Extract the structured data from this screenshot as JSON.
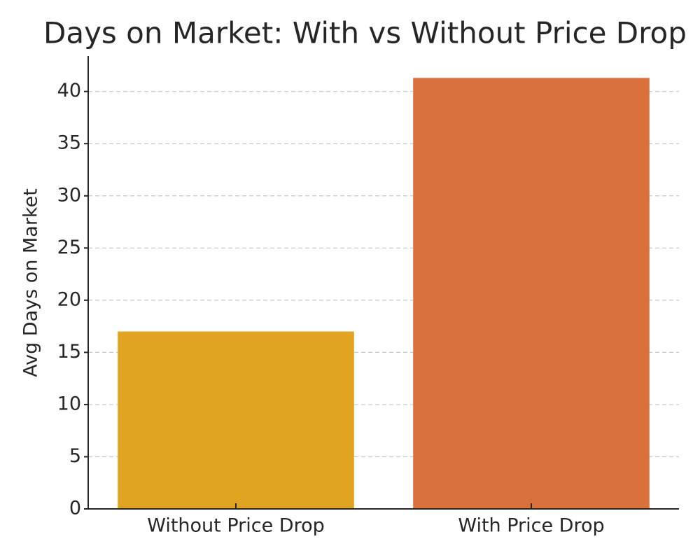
{
  "chart_data": {
    "type": "bar",
    "title": "Days on Market: With vs Without Price Drop",
    "y_label": "Avg Days on Market",
    "categories": [
      "Without Price Drop",
      "With Price Drop"
    ],
    "values": [
      17,
      41.3
    ],
    "colors": [
      "#e0a422",
      "#d9713c"
    ],
    "ylim": [
      0,
      43.4
    ],
    "yticks": [
      0,
      5,
      10,
      15,
      20,
      25,
      30,
      35,
      40
    ],
    "grid": true
  }
}
